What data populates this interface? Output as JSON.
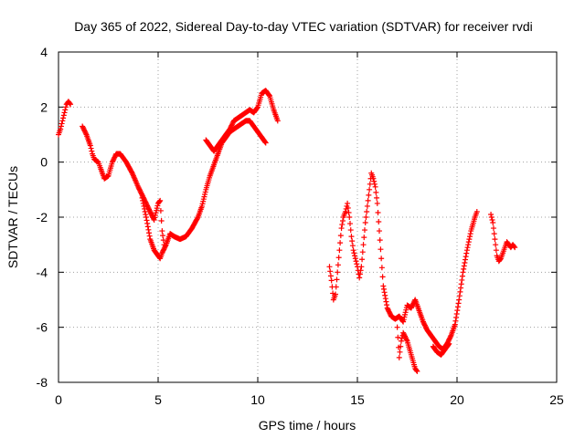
{
  "chart_data": {
    "type": "scatter",
    "title": "Day 365 of 2022, Sidereal Day-to-day VTEC variation (SDTVAR) for receiver rvdi",
    "xlabel": "GPS time / hours",
    "ylabel": "SDTVAR / TECUs",
    "xlim": [
      0,
      25
    ],
    "ylim": [
      -8,
      4
    ],
    "xticks": [
      "0",
      "5",
      "10",
      "15",
      "20",
      "25"
    ],
    "yticks": [
      "-8",
      "-6",
      "-4",
      "-2",
      "0",
      "2",
      "4"
    ],
    "grid": true,
    "marker": "+",
    "color": "#ff0000",
    "series": [
      {
        "segments": [
          [
            [
              0.0,
              1.0
            ],
            [
              0.1,
              1.2
            ],
            [
              0.2,
              1.5
            ],
            [
              0.3,
              1.8
            ],
            [
              0.4,
              2.1
            ],
            [
              0.5,
              2.2
            ],
            [
              0.6,
              2.1
            ]
          ],
          [
            [
              1.2,
              1.3
            ],
            [
              1.4,
              1.0
            ],
            [
              1.6,
              0.6
            ],
            [
              1.7,
              0.3
            ],
            [
              1.8,
              0.1
            ],
            [
              2.0,
              0.0
            ],
            [
              2.1,
              -0.2
            ],
            [
              2.3,
              -0.6
            ],
            [
              2.5,
              -0.5
            ],
            [
              2.7,
              0.0
            ],
            [
              2.9,
              0.3
            ],
            [
              3.1,
              0.3
            ],
            [
              3.4,
              0.0
            ],
            [
              3.7,
              -0.4
            ],
            [
              4.0,
              -0.9
            ],
            [
              4.2,
              -1.2
            ],
            [
              4.4,
              -1.5
            ],
            [
              4.6,
              -1.8
            ],
            [
              4.8,
              -2.1
            ],
            [
              5.0,
              -1.5
            ],
            [
              5.1,
              -1.4
            ],
            [
              5.2,
              -2.5
            ],
            [
              5.3,
              -3.0
            ]
          ],
          [
            [
              4.2,
              -1.3
            ],
            [
              4.4,
              -2.0
            ],
            [
              4.6,
              -2.8
            ],
            [
              4.8,
              -3.2
            ],
            [
              5.0,
              -3.4
            ],
            [
              5.1,
              -3.5
            ],
            [
              5.2,
              -3.3
            ],
            [
              5.4,
              -3.0
            ],
            [
              5.6,
              -2.6
            ],
            [
              5.8,
              -2.7
            ],
            [
              6.1,
              -2.8
            ],
            [
              6.4,
              -2.7
            ],
            [
              6.7,
              -2.4
            ],
            [
              7.0,
              -2.0
            ],
            [
              7.2,
              -1.6
            ],
            [
              7.4,
              -1.0
            ],
            [
              7.6,
              -0.5
            ],
            [
              7.8,
              -0.1
            ],
            [
              8.0,
              0.3
            ],
            [
              8.2,
              0.7
            ],
            [
              8.4,
              0.9
            ],
            [
              8.6,
              1.1
            ],
            [
              8.8,
              1.2
            ],
            [
              9.0,
              1.3
            ],
            [
              9.2,
              1.4
            ],
            [
              9.4,
              1.5
            ],
            [
              9.6,
              1.5
            ],
            [
              9.8,
              1.3
            ],
            [
              10.0,
              1.1
            ],
            [
              10.2,
              0.9
            ],
            [
              10.4,
              0.7
            ]
          ],
          [
            [
              7.4,
              0.8
            ],
            [
              7.6,
              0.6
            ],
            [
              7.8,
              0.4
            ],
            [
              8.0,
              0.6
            ],
            [
              8.2,
              0.8
            ],
            [
              8.4,
              1.0
            ],
            [
              8.6,
              1.2
            ],
            [
              8.8,
              1.5
            ],
            [
              9.0,
              1.6
            ],
            [
              9.2,
              1.7
            ],
            [
              9.4,
              1.8
            ],
            [
              9.6,
              1.9
            ],
            [
              9.8,
              1.8
            ],
            [
              10.0,
              2.0
            ],
            [
              10.2,
              2.5
            ],
            [
              10.4,
              2.6
            ],
            [
              10.6,
              2.4
            ],
            [
              10.8,
              1.9
            ],
            [
              11.0,
              1.5
            ]
          ],
          [
            [
              13.6,
              -3.8
            ],
            [
              13.7,
              -4.3
            ],
            [
              13.8,
              -5.0
            ],
            [
              13.9,
              -4.8
            ],
            [
              14.0,
              -4.0
            ],
            [
              14.1,
              -3.2
            ],
            [
              14.2,
              -2.4
            ],
            [
              14.3,
              -2.0
            ],
            [
              14.4,
              -1.8
            ],
            [
              14.5,
              -1.5
            ],
            [
              14.6,
              -2.0
            ],
            [
              14.7,
              -2.7
            ],
            [
              14.8,
              -3.2
            ],
            [
              14.9,
              -3.5
            ],
            [
              15.0,
              -3.8
            ],
            [
              15.1,
              -4.2
            ],
            [
              15.2,
              -3.8
            ],
            [
              15.3,
              -3.0
            ],
            [
              15.4,
              -2.2
            ],
            [
              15.5,
              -1.6
            ],
            [
              15.6,
              -1.0
            ],
            [
              15.7,
              -0.4
            ],
            [
              15.8,
              -0.6
            ],
            [
              15.9,
              -0.9
            ],
            [
              16.0,
              -1.5
            ],
            [
              16.1,
              -2.5
            ],
            [
              16.2,
              -3.5
            ],
            [
              16.3,
              -4.5
            ],
            [
              16.5,
              -5.3
            ],
            [
              16.7,
              -5.6
            ],
            [
              16.9,
              -5.7
            ],
            [
              17.1,
              -5.6
            ],
            [
              17.3,
              -5.8
            ],
            [
              17.5,
              -5.2
            ],
            [
              17.7,
              -5.3
            ],
            [
              17.9,
              -5.0
            ],
            [
              18.1,
              -5.4
            ],
            [
              18.3,
              -5.8
            ],
            [
              18.5,
              -6.1
            ],
            [
              18.7,
              -6.3
            ],
            [
              18.9,
              -6.5
            ],
            [
              19.1,
              -6.7
            ],
            [
              19.3,
              -6.8
            ],
            [
              19.5,
              -6.6
            ],
            [
              19.7,
              -6.3
            ],
            [
              19.9,
              -5.9
            ],
            [
              20.1,
              -5.0
            ],
            [
              20.3,
              -4.0
            ],
            [
              20.5,
              -3.2
            ],
            [
              20.7,
              -2.5
            ],
            [
              20.9,
              -2.0
            ],
            [
              21.0,
              -1.8
            ]
          ],
          [
            [
              17.0,
              -6.0
            ],
            [
              17.1,
              -7.1
            ],
            [
              17.2,
              -6.5
            ],
            [
              17.3,
              -6.2
            ],
            [
              17.5,
              -6.5
            ],
            [
              17.7,
              -7.0
            ],
            [
              17.9,
              -7.5
            ],
            [
              18.0,
              -7.6
            ]
          ],
          [
            [
              18.8,
              -6.7
            ],
            [
              19.0,
              -6.9
            ],
            [
              19.2,
              -7.0
            ],
            [
              19.4,
              -6.8
            ],
            [
              19.6,
              -6.6
            ]
          ],
          [
            [
              21.7,
              -1.9
            ],
            [
              21.8,
              -2.2
            ],
            [
              21.9,
              -2.8
            ],
            [
              22.0,
              -3.4
            ],
            [
              22.1,
              -3.6
            ],
            [
              22.2,
              -3.5
            ],
            [
              22.3,
              -3.3
            ],
            [
              22.4,
              -3.1
            ],
            [
              22.5,
              -2.9
            ],
            [
              22.6,
              -3.0
            ],
            [
              22.7,
              -3.1
            ],
            [
              22.8,
              -3.0
            ],
            [
              22.9,
              -3.1
            ]
          ]
        ]
      }
    ]
  }
}
